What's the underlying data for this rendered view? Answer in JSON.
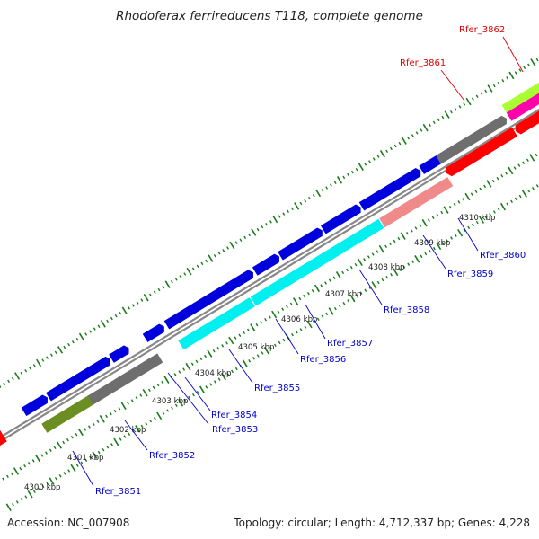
{
  "title": "Rhodoferax ferrireducens T118, complete genome",
  "footer": {
    "accession": "Accession: NC_007908",
    "summary": "Topology: circular; Length: 4,712,337 bp; Genes: 4,228"
  },
  "colors": {
    "forward_gene": "#0000dd",
    "reverse_gene": "#ff0000",
    "cds_cyan": "#00f0f0",
    "cds_grey": "#6e6e6e",
    "cds_olive": "#6b8e23",
    "cds_pink": "#f08a8a",
    "cds_lime": "#aaff33",
    "cds_magenta": "#ff00aa",
    "genome_backbone": "#888888",
    "tick_marks": "#1a7a1a",
    "gene_label_blue": "#0000cc",
    "gene_label_red": "#dd0000"
  },
  "kbp_labels": [
    "4300 kbp",
    "4301 kbp",
    "4302 kbp",
    "4303 kbp",
    "4304 kbp",
    "4305 kbp",
    "4306 kbp",
    "4307 kbp",
    "4308 kbp",
    "4309 kbp",
    "4310 kbp"
  ],
  "gene_labels": [
    {
      "name": "Rfer_3851",
      "color": "blue"
    },
    {
      "name": "Rfer_3852",
      "color": "blue"
    },
    {
      "name": "Rfer_3853",
      "color": "blue"
    },
    {
      "name": "Rfer_3854",
      "color": "blue"
    },
    {
      "name": "Rfer_3855",
      "color": "blue"
    },
    {
      "name": "Rfer_3856",
      "color": "blue"
    },
    {
      "name": "Rfer_3857",
      "color": "blue"
    },
    {
      "name": "Rfer_3858",
      "color": "blue"
    },
    {
      "name": "Rfer_3859",
      "color": "blue"
    },
    {
      "name": "Rfer_3860",
      "color": "blue"
    },
    {
      "name": "Rfer_3861",
      "color": "red"
    },
    {
      "name": "Rfer_3862",
      "color": "red"
    }
  ]
}
